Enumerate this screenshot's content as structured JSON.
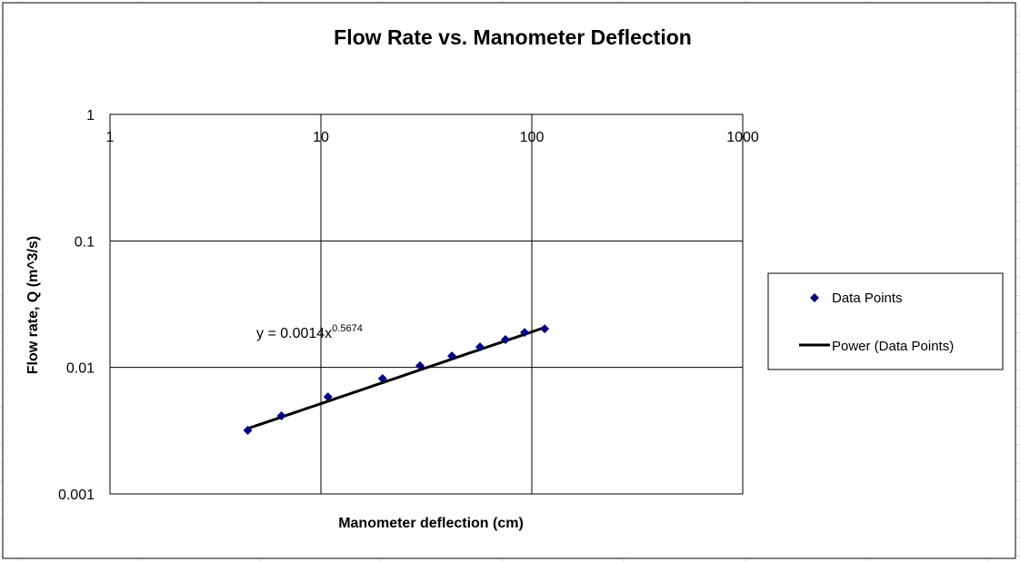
{
  "chart_data": {
    "type": "scatter",
    "title": "Flow Rate vs. Manometer Deflection",
    "xlabel": "Manometer deflection (cm)",
    "ylabel": "Flow rate, Q (m^3/s)",
    "xscale": "log",
    "yscale": "log",
    "xlim": [
      1,
      1000
    ],
    "ylim": [
      0.001,
      1
    ],
    "xticks": [
      "1",
      "10",
      "100",
      "1000"
    ],
    "yticks": [
      "0.001",
      "0.01",
      "0.1",
      "1"
    ],
    "grid": true,
    "legend_position": "right",
    "series": [
      {
        "name": "Data Points",
        "marker": "diamond",
        "color": "#000080",
        "x": [
          4.5,
          6.5,
          10.8,
          19.6,
          29.5,
          41.8,
          56.8,
          75,
          92.4,
          115
        ],
        "y": [
          0.00318,
          0.00414,
          0.00585,
          0.00815,
          0.0103,
          0.0123,
          0.0145,
          0.0166,
          0.0189,
          0.0202
        ]
      }
    ],
    "trendline": {
      "name": "Power (Data Points)",
      "type": "power",
      "coefficient": 0.0014,
      "exponent": 0.5674,
      "x_range": [
        4.5,
        115
      ],
      "color": "#000000",
      "equation_base": "y = 0.0014x",
      "equation_exponent": "0.5674"
    }
  }
}
